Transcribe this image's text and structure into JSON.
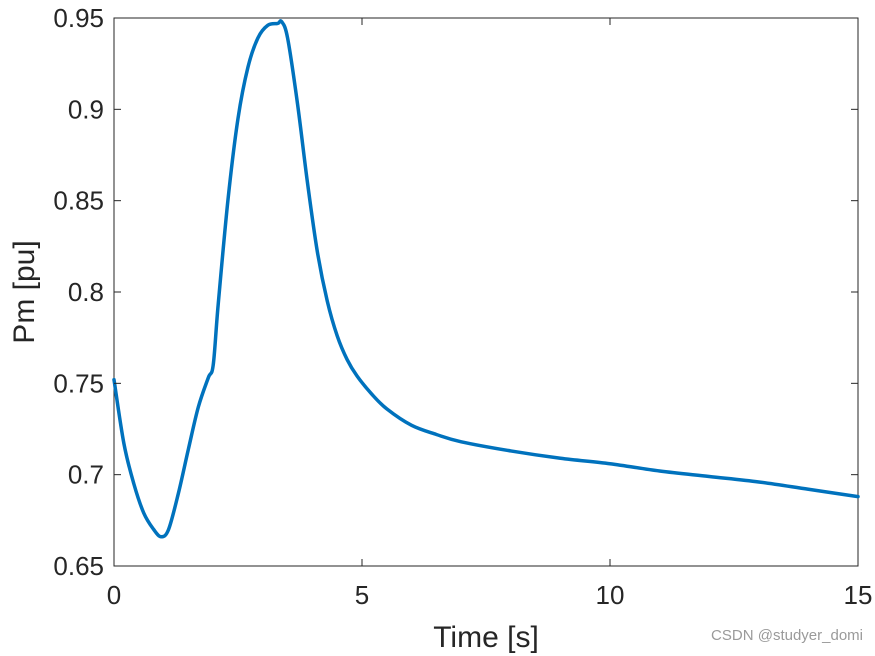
{
  "chart_data": {
    "type": "line",
    "title": "",
    "xlabel": "Time [s]",
    "ylabel": "Pm [pu]",
    "xlim": [
      0,
      15
    ],
    "ylim": [
      0.65,
      0.95
    ],
    "xticks": [
      0,
      5,
      10,
      15
    ],
    "yticks": [
      0.65,
      0.7,
      0.75,
      0.8,
      0.85,
      0.9,
      0.95
    ],
    "xtick_labels": [
      "0",
      "5",
      "10",
      "15"
    ],
    "ytick_labels": [
      "0.65",
      "0.7",
      "0.75",
      "0.8",
      "0.85",
      "0.9",
      "0.95"
    ],
    "grid": false,
    "legend": "none",
    "series": [
      {
        "name": "",
        "color": "#0072BD",
        "x": [
          0,
          0.2,
          0.4,
          0.6,
          0.8,
          0.95,
          1.1,
          1.3,
          1.5,
          1.7,
          1.9,
          2.0,
          2.1,
          2.3,
          2.5,
          2.7,
          2.9,
          3.1,
          3.3,
          3.38,
          3.5,
          3.7,
          3.9,
          4.1,
          4.3,
          4.5,
          4.7,
          4.9,
          5.2,
          5.5,
          6.0,
          6.5,
          7.0,
          8.0,
          9.0,
          10.0,
          11.0,
          12.0,
          13.0,
          14.0,
          15.0
        ],
        "y": [
          0.752,
          0.717,
          0.695,
          0.679,
          0.67,
          0.666,
          0.67,
          0.69,
          0.714,
          0.737,
          0.753,
          0.76,
          0.793,
          0.851,
          0.895,
          0.923,
          0.939,
          0.946,
          0.947,
          0.948,
          0.939,
          0.903,
          0.86,
          0.822,
          0.795,
          0.776,
          0.763,
          0.754,
          0.744,
          0.736,
          0.727,
          0.722,
          0.718,
          0.713,
          0.709,
          0.706,
          0.702,
          0.699,
          0.696,
          0.692,
          0.688
        ]
      }
    ]
  },
  "watermark": "CSDN @studyer_domi"
}
